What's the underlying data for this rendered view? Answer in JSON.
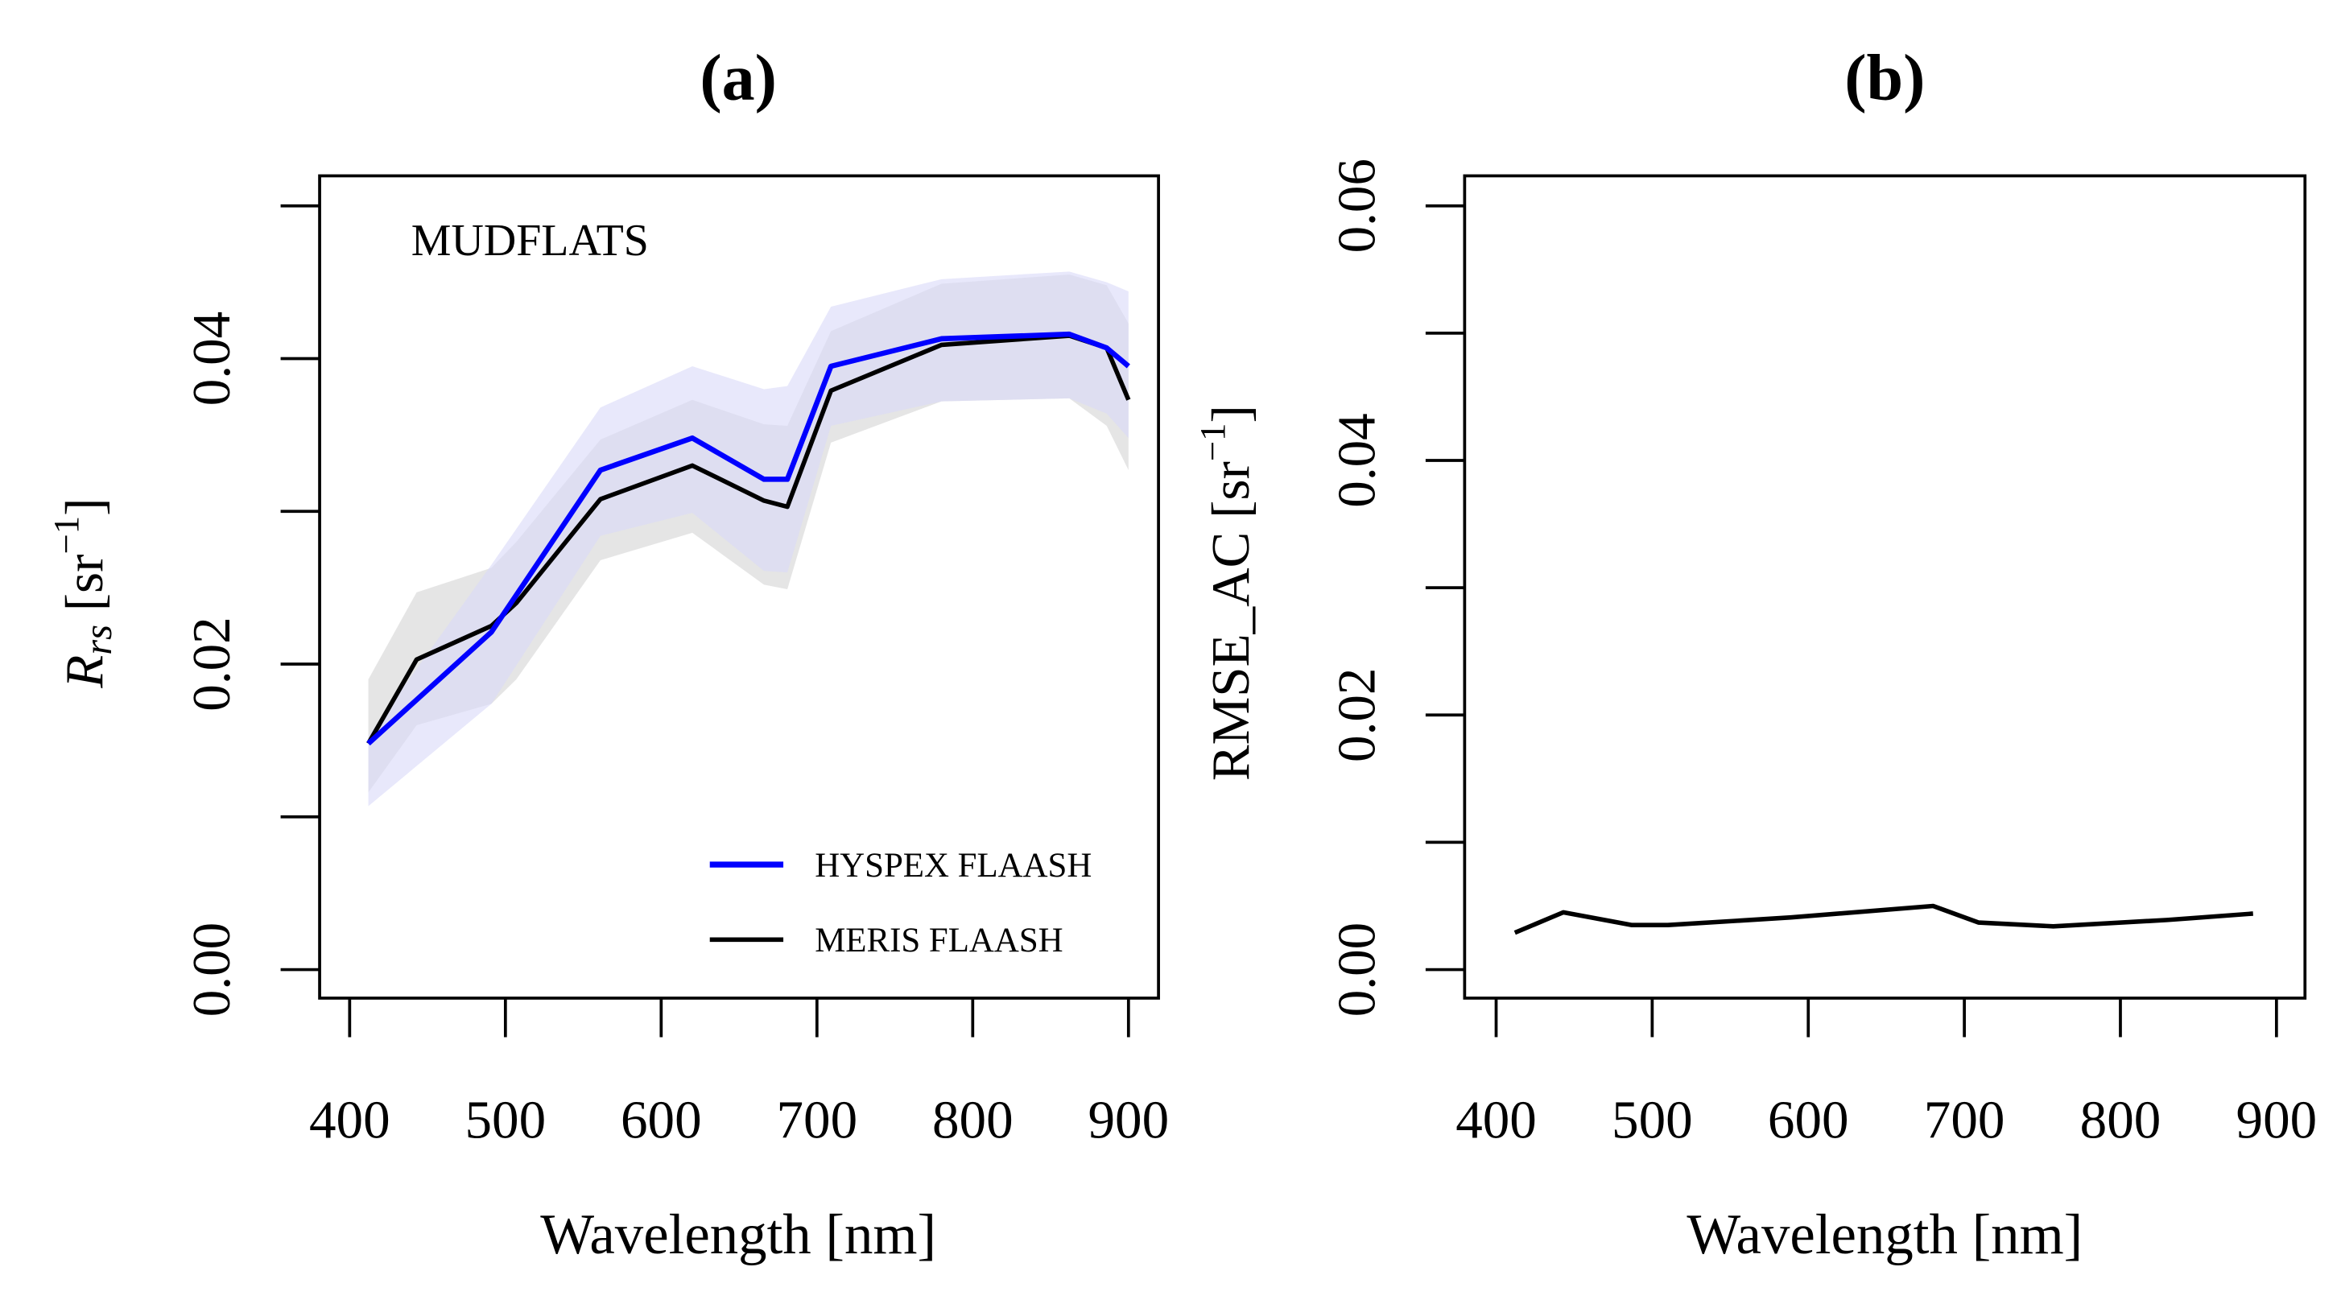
{
  "chart_data": [
    {
      "type": "line",
      "panel_label": "(a)",
      "annotation": "MUDFLATS",
      "xlabel": "Wavelength [nm]",
      "ylabel": {
        "symbol": "R",
        "subscript": "rs",
        "unit_open": " [sr",
        "unit_exp": "−1",
        "unit_close": "]"
      },
      "xlim": [
        400,
        900
      ],
      "ylim": [
        0,
        0.05
      ],
      "xticks": [
        400,
        500,
        600,
        700,
        800,
        900
      ],
      "yticks": [
        0,
        0.01,
        0.02,
        0.03,
        0.04,
        0.05
      ],
      "ytick_labels": {
        "0": "0.00",
        "0.02": "0.02",
        "0.04": "0.04"
      },
      "legend_position": "bottom-right",
      "series": [
        {
          "name": "HYSPEX FLAASH",
          "color": "#0000ff",
          "band_color": "#d8d8f8",
          "x": [
            412,
            491,
            561,
            620,
            666,
            681,
            709,
            780,
            862,
            886,
            900
          ],
          "y": [
            0.0148,
            0.0221,
            0.0327,
            0.0348,
            0.0321,
            0.0321,
            0.0395,
            0.0413,
            0.0416,
            0.0407,
            0.0395
          ],
          "upper": [
            0.0153,
            0.0265,
            0.0368,
            0.0395,
            0.038,
            0.0382,
            0.0434,
            0.0452,
            0.0457,
            0.045,
            0.0444
          ],
          "lower": [
            0.0107,
            0.0174,
            0.0284,
            0.0299,
            0.0261,
            0.026,
            0.0356,
            0.0372,
            0.0374,
            0.0364,
            0.0348
          ]
        },
        {
          "name": "MERIS FLAASH",
          "color": "#000000",
          "band_color": "#d0d0d0",
          "x": [
            412,
            443,
            491,
            507,
            561,
            620,
            666,
            681,
            709,
            780,
            862,
            886,
            900
          ],
          "y": [
            0.0148,
            0.0203,
            0.0225,
            0.024,
            0.0308,
            0.033,
            0.0307,
            0.0303,
            0.0379,
            0.0409,
            0.0415,
            0.0407,
            0.0373
          ],
          "upper": [
            0.019,
            0.0247,
            0.0263,
            0.028,
            0.0347,
            0.0373,
            0.0357,
            0.0356,
            0.0418,
            0.0449,
            0.0455,
            0.0448,
            0.0423
          ],
          "lower": [
            0.0116,
            0.016,
            0.0174,
            0.019,
            0.0268,
            0.0286,
            0.0252,
            0.0249,
            0.0345,
            0.0372,
            0.0374,
            0.0356,
            0.0327
          ]
        }
      ]
    },
    {
      "type": "line",
      "panel_label": "(b)",
      "xlabel": "Wavelength [nm]",
      "ylabel": {
        "main": "RMSE_AC [sr",
        "unit_exp": "−1",
        "unit_close": "]"
      },
      "xlim": [
        400,
        900
      ],
      "ylim": [
        0,
        0.06
      ],
      "xticks": [
        400,
        500,
        600,
        700,
        800,
        900
      ],
      "yticks": [
        0,
        0.01,
        0.02,
        0.03,
        0.04,
        0.05,
        0.06
      ],
      "ytick_labels": {
        "0": "0.00",
        "0.02": "0.02",
        "0.04": "0.04",
        "0.06": "0.06"
      },
      "series": [
        {
          "name": "RMSE_AC",
          "color": "#000000",
          "x": [
            412,
            443,
            487,
            510,
            589,
            680,
            709,
            757,
            830,
            885
          ],
          "y": [
            0.0029,
            0.0045,
            0.0035,
            0.0035,
            0.0041,
            0.005,
            0.0037,
            0.0034,
            0.0039,
            0.0044
          ]
        }
      ]
    }
  ]
}
